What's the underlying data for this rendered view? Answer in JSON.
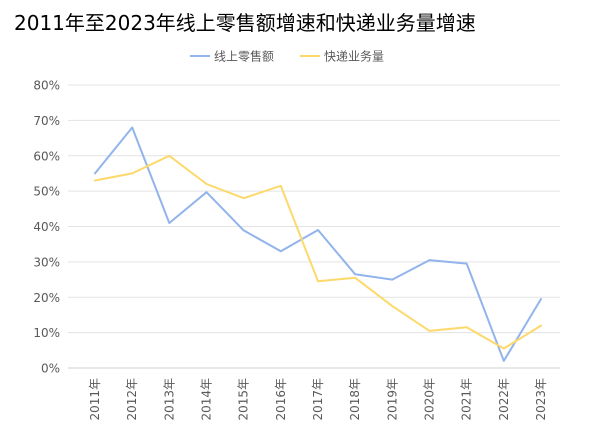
{
  "chart_data": {
    "type": "line",
    "title": "2011年至2023年线上零售额增速和快递业务量增速",
    "xlabel": "",
    "ylabel": "",
    "categories": [
      "2011年",
      "2012年",
      "2013年",
      "2014年",
      "2015年",
      "2016年",
      "2017年",
      "2018年",
      "2019年",
      "2020年",
      "2021年",
      "2022年",
      "2023年"
    ],
    "y_ticks": [
      "0%",
      "10%",
      "20%",
      "30%",
      "40%",
      "50%",
      "60%",
      "70%",
      "80%"
    ],
    "ylim": [
      0,
      80
    ],
    "grid": true,
    "legend_position": "top",
    "series": [
      {
        "name": "线上零售额",
        "color": "#92b4ec",
        "values": [
          55,
          68,
          41,
          49.7,
          38.9,
          33,
          39,
          26.5,
          25,
          30.5,
          29.5,
          2,
          19.5
        ]
      },
      {
        "name": "快递业务量",
        "color": "#fcd96a",
        "values": [
          53,
          55,
          60,
          52,
          48,
          51.5,
          24.5,
          25.5,
          17.5,
          10.5,
          11.5,
          5.5,
          12
        ]
      }
    ]
  }
}
